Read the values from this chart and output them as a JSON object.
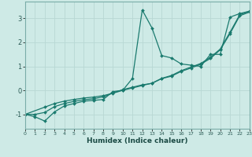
{
  "xlabel": "Humidex (Indice chaleur)",
  "ylabel": "",
  "bg_color": "#ceeae6",
  "grid_color": "#b8d8d4",
  "line_color": "#1a7a6e",
  "xlim": [
    0,
    23
  ],
  "ylim": [
    -1.6,
    3.7
  ],
  "yticks": [
    -1,
    0,
    1,
    2,
    3
  ],
  "xticks": [
    0,
    1,
    2,
    3,
    4,
    5,
    6,
    7,
    8,
    9,
    10,
    11,
    12,
    13,
    14,
    15,
    16,
    17,
    18,
    19,
    20,
    21,
    22,
    23
  ],
  "line1_x": [
    0,
    1,
    2,
    3,
    4,
    5,
    6,
    7,
    8,
    9,
    10,
    11,
    12,
    13,
    14,
    15,
    16,
    17,
    18,
    19,
    20,
    21,
    22,
    23
  ],
  "line1_y": [
    -1.0,
    -1.1,
    -1.28,
    -0.9,
    -0.65,
    -0.55,
    -0.45,
    -0.42,
    -0.38,
    -0.05,
    0.0,
    0.5,
    3.35,
    2.6,
    1.45,
    1.35,
    1.1,
    1.05,
    1.0,
    1.5,
    1.5,
    3.05,
    3.2,
    3.3
  ],
  "line2_x": [
    0,
    2,
    3,
    4,
    5,
    6,
    7,
    8,
    9,
    10,
    11,
    12,
    13,
    14,
    15,
    16,
    17,
    18,
    19,
    20,
    21,
    22,
    23
  ],
  "line2_y": [
    -1.0,
    -0.7,
    -0.55,
    -0.45,
    -0.38,
    -0.32,
    -0.28,
    -0.22,
    -0.12,
    0.0,
    0.1,
    0.2,
    0.3,
    0.5,
    0.62,
    0.82,
    0.97,
    1.12,
    1.38,
    1.72,
    2.42,
    3.15,
    3.3
  ],
  "line3_x": [
    0,
    1,
    2,
    3,
    4,
    5,
    6,
    7,
    8,
    9,
    10,
    11,
    12,
    13,
    14,
    15,
    16,
    17,
    18,
    19,
    20,
    21,
    22,
    23
  ],
  "line3_y": [
    -1.0,
    -1.0,
    -0.92,
    -0.68,
    -0.55,
    -0.46,
    -0.39,
    -0.35,
    -0.27,
    -0.11,
    0.03,
    0.13,
    0.23,
    0.29,
    0.49,
    0.59,
    0.79,
    0.93,
    1.09,
    1.33,
    1.69,
    2.36,
    3.11,
    3.26
  ]
}
